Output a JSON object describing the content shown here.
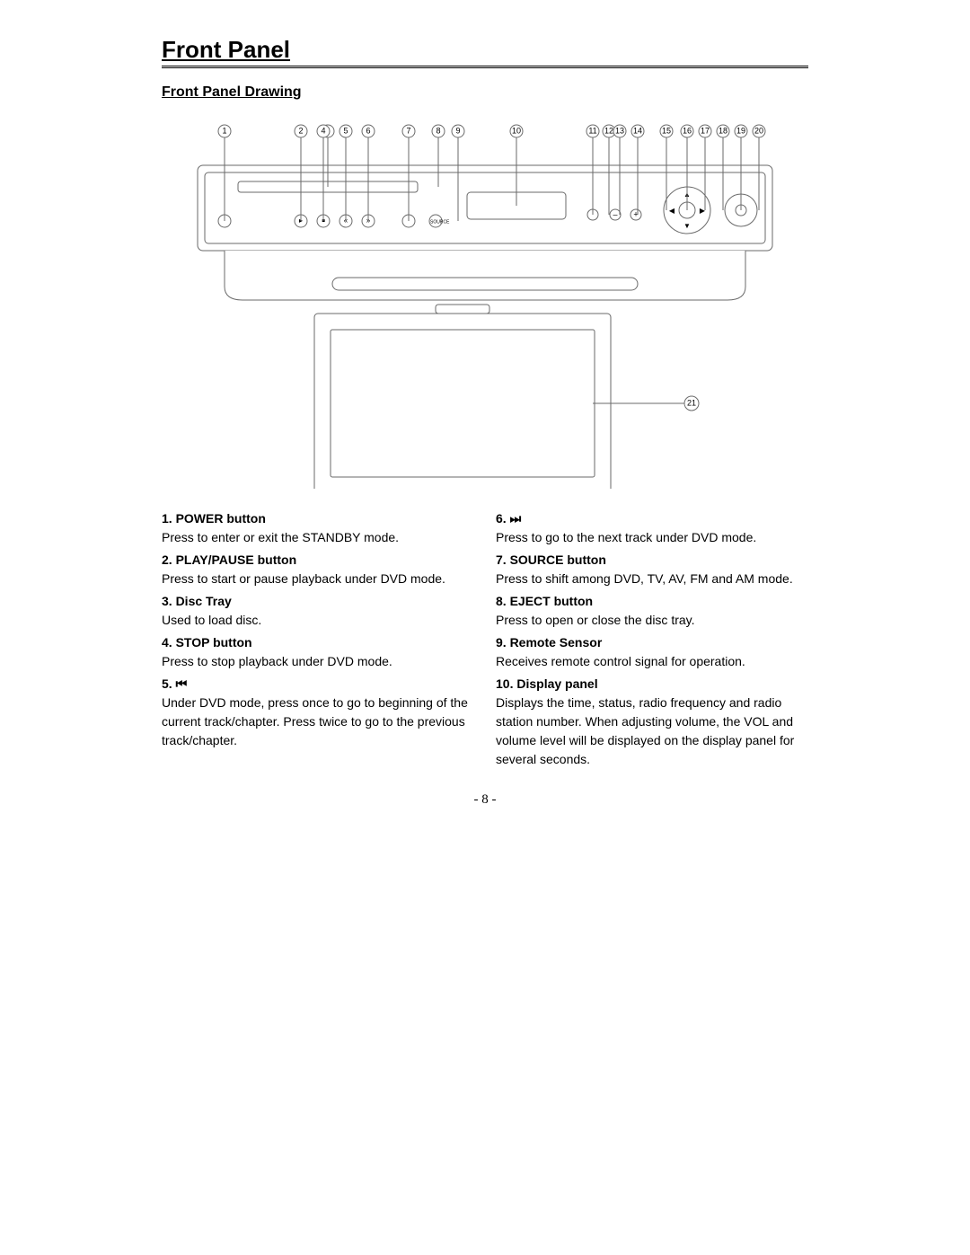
{
  "section_title": "Front Panel",
  "subsection_title": "Front Panel Drawing",
  "page_number": "- 8 -",
  "diagram": {
    "stroke": "#6a6a6a",
    "stroke_width": 1,
    "fill": "#ffffff",
    "callouts_row1": [
      1,
      2,
      3,
      4,
      5,
      6,
      7,
      8,
      9,
      10,
      11,
      12,
      13,
      14,
      15,
      16,
      17,
      18,
      19,
      20
    ],
    "callout_21": 21
  },
  "left_items": [
    {
      "num": "1.",
      "title": "POWER button",
      "desc": "Press to enter or exit the STANDBY mode."
    },
    {
      "num": "2.",
      "title": "PLAY/PAUSE button",
      "desc": "Press to start or pause playback under DVD mode."
    },
    {
      "num": "3.",
      "title": "Disc Tray",
      "desc": "Used to load disc."
    },
    {
      "num": "4.",
      "title": "STOP button",
      "desc": "Press to stop playback under DVD mode."
    },
    {
      "num": "5.",
      "title": "⏮",
      "desc": "Under DVD mode, press once to go to beginning of the current track/chapter. Press twice to go to the previous track/chapter."
    }
  ],
  "right_items": [
    {
      "num": "6.",
      "title": "⏭",
      "desc": "Press to go to the next track under DVD mode."
    },
    {
      "num": "7.",
      "title": "SOURCE button",
      "desc": "Press to shift among DVD, TV, AV, FM and AM mode."
    },
    {
      "num": "8.",
      "title": "EJECT button",
      "desc": "Press to open or close the disc tray."
    },
    {
      "num": "9.",
      "title": " Remote Sensor",
      "desc": "Receives remote control signal for operation."
    },
    {
      "num": "10.",
      "title": "Display panel",
      "desc": "Displays the time, status, radio frequency and radio station number. When adjusting volume, the VOL and volume level will be displayed on the display panel for several seconds."
    }
  ]
}
